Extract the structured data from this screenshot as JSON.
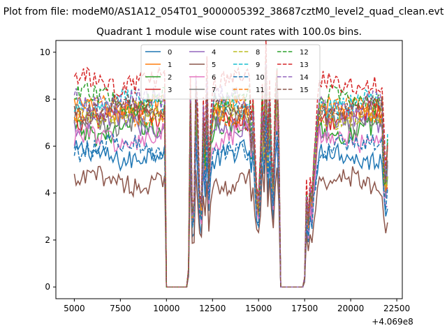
{
  "page": {
    "suptitle": "Plot from file: modeM0/AS1A12_054T01_9000005392_38687cztM0_level2_quad_clean.evt",
    "title": "Quadrant 1 module wise count rates with 100.0s bins."
  },
  "chart_data": {
    "type": "line",
    "title": "Quadrant 1 module wise count rates with 100.0s bins.",
    "xlabel": "",
    "ylabel": "",
    "x_offset_label": "+4.069e8",
    "xlim": [
      4000,
      22800
    ],
    "ylim": [
      -0.5,
      10.5
    ],
    "xticks": [
      5000,
      7500,
      10000,
      12500,
      15000,
      17500,
      20000,
      22500
    ],
    "xtick_labels": [
      "5000",
      "7500",
      "10000",
      "12500",
      "15000",
      "17500",
      "20000",
      "22500"
    ],
    "yticks": [
      0,
      2,
      4,
      6,
      8,
      10
    ],
    "ytick_labels": [
      "0",
      "2",
      "4",
      "6",
      "8",
      "10"
    ],
    "legend_position": "top-center",
    "legend_columns": 4,
    "time_range": [
      5000,
      22000
    ],
    "bin_size": 100,
    "gaps": [
      [
        10000,
        11200
      ],
      [
        16200,
        17500
      ]
    ],
    "series": [
      {
        "name": "0",
        "color": "#1f77b4",
        "dash": "solid",
        "level": 5.6
      },
      {
        "name": "1",
        "color": "#ff7f0e",
        "dash": "solid",
        "level": 7.6
      },
      {
        "name": "2",
        "color": "#2ca02c",
        "dash": "solid",
        "level": 6.7
      },
      {
        "name": "3",
        "color": "#d62728",
        "dash": "solid",
        "level": 7.3
      },
      {
        "name": "4",
        "color": "#9467bd",
        "dash": "solid",
        "level": 7.0
      },
      {
        "name": "5",
        "color": "#8c564b",
        "dash": "solid",
        "level": 4.5
      },
      {
        "name": "6",
        "color": "#e377c2",
        "dash": "solid",
        "level": 6.3
      },
      {
        "name": "7",
        "color": "#7f7f7f",
        "dash": "solid",
        "level": 7.1
      },
      {
        "name": "8",
        "color": "#bcbd22",
        "dash": "dashed",
        "level": 7.3
      },
      {
        "name": "9",
        "color": "#17becf",
        "dash": "dashed",
        "level": 7.8
      },
      {
        "name": "10",
        "color": "#1f77b4",
        "dash": "dashed",
        "level": 6.0
      },
      {
        "name": "11",
        "color": "#ff7f0e",
        "dash": "dashed",
        "level": 7.5
      },
      {
        "name": "12",
        "color": "#2ca02c",
        "dash": "dashed",
        "level": 8.0
      },
      {
        "name": "13",
        "color": "#d62728",
        "dash": "dashed",
        "level": 8.7
      },
      {
        "name": "14",
        "color": "#9467bd",
        "dash": "dashed",
        "level": 7.9
      },
      {
        "name": "15",
        "color": "#8c564b",
        "dash": "dashed",
        "level": 7.6
      }
    ]
  }
}
